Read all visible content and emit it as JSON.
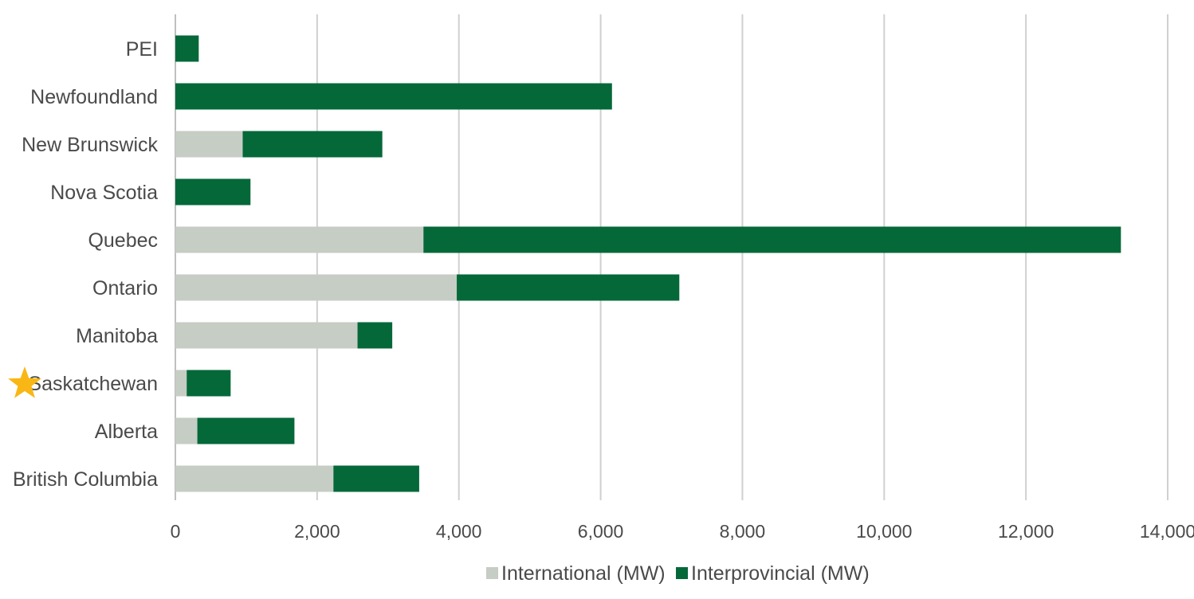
{
  "chart_data": {
    "type": "bar",
    "orientation": "horizontal",
    "stacked": true,
    "categories": [
      "PEI",
      "Newfoundland",
      "New Brunswick",
      "Nova Scotia",
      "Quebec",
      "Ontario",
      "Manitoba",
      "Saskatchewan",
      "Alberta",
      "British Columbia"
    ],
    "series": [
      {
        "name": "International (MW)",
        "color": "#c6cdc4",
        "values": [
          0,
          0,
          950,
          0,
          3500,
          3970,
          2570,
          160,
          310,
          2230
        ]
      },
      {
        "name": "Interprovincial (MW)",
        "color": "#056839",
        "values": [
          330,
          6160,
          1970,
          1060,
          9840,
          3140,
          490,
          620,
          1370,
          1210
        ]
      }
    ],
    "xlim": [
      0,
      14000
    ],
    "xticks": [
      0,
      2000,
      4000,
      6000,
      8000,
      10000,
      12000,
      14000
    ],
    "xtick_labels": [
      "0",
      "2,000",
      "4,000",
      "6,000",
      "8,000",
      "10,000",
      "12,000",
      "14,000"
    ],
    "grid": "vertical",
    "legend_position": "bottom-center",
    "highlight": {
      "category": "Saskatchewan",
      "icon": "star-icon",
      "color": "#f9b716"
    }
  }
}
